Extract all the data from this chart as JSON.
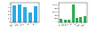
{
  "left": {
    "categories": [
      "Fluor-\nescein",
      "Rhod.\n6G",
      "Rhod.\nB",
      "Cy3",
      "Cy5"
    ],
    "values": [
      0.93,
      0.95,
      0.79,
      0.5,
      0.88
    ],
    "bar_color": "#29ABE2",
    "ylim": [
      0,
      1.05
    ],
    "yticks": [
      0.0,
      0.2,
      0.4,
      0.6,
      0.8,
      1.0
    ],
    "ytick_labels": [
      "0",
      "0.2",
      "0.4",
      "0.6",
      "0.8",
      "1"
    ]
  },
  "right": {
    "categories": [
      "FITC",
      "Rhod.\n6G",
      "Rhod.\nB",
      "Cy3",
      "Cy5",
      "Alexa\n488",
      "Alexa\n647"
    ],
    "values": [
      50000,
      30000,
      40000,
      250000,
      60000,
      71000,
      90000
    ],
    "bar_color": "#22B14C",
    "ylim": [
      0,
      280000
    ],
    "yticks": [
      0,
      50000,
      100000,
      150000,
      200000,
      250000
    ],
    "ytick_labels": [
      "0",
      "5e+04",
      "1e+05",
      "1.5e+05",
      "2e+05",
      "2.5e+05"
    ]
  },
  "background_color": "#ffffff"
}
